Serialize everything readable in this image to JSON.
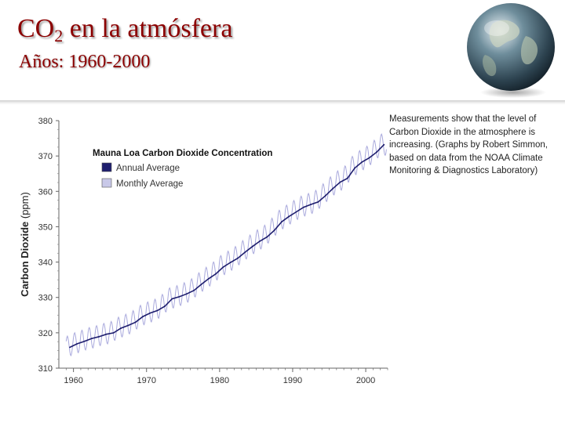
{
  "slide": {
    "title_main": "CO",
    "title_sub": "2",
    "title_rest": " en la atmósfera",
    "subtitle": "Años: 1960-2000",
    "caption": "Measurements show that the level of Carbon Dioxide in the atmosphere is increasing. (Graphs by Robert Simmon, based on data from the NOAA Climate Monitoring & Diagnostics Laboratory)"
  },
  "colors": {
    "title": "#8b0000",
    "annual_line": "#1e1e6e",
    "monthly_line": "#a8a8dc"
  },
  "chart_data": {
    "type": "line",
    "title": "Mauna Loa Carbon Dioxide Concentration",
    "ylabel_main": "Carbon Dioxide",
    "ylabel_unit": " (ppm)",
    "xlim": [
      1958,
      2003
    ],
    "ylim": [
      310,
      380
    ],
    "x_ticks": [
      1960,
      1970,
      1980,
      1990,
      2000
    ],
    "y_ticks": [
      310,
      320,
      330,
      340,
      350,
      360,
      370,
      380
    ],
    "legend": {
      "position": "top-left",
      "entries": [
        "Annual Average",
        "Monthly Average"
      ]
    },
    "grid": false,
    "seasonal_amplitude_ppm": 3,
    "series": [
      {
        "name": "Annual Average",
        "x": [
          1959,
          1960,
          1961,
          1962,
          1963,
          1964,
          1965,
          1966,
          1967,
          1968,
          1969,
          1970,
          1971,
          1972,
          1973,
          1974,
          1975,
          1976,
          1977,
          1978,
          1979,
          1980,
          1981,
          1982,
          1983,
          1984,
          1985,
          1986,
          1987,
          1988,
          1989,
          1990,
          1991,
          1992,
          1993,
          1994,
          1995,
          1996,
          1997,
          1998,
          1999,
          2000,
          2001,
          2002
        ],
        "y": [
          315.9,
          316.9,
          317.6,
          318.4,
          318.9,
          319.6,
          320.0,
          321.3,
          322.1,
          323.0,
          324.6,
          325.6,
          326.3,
          327.5,
          329.6,
          330.2,
          331.0,
          332.0,
          333.7,
          335.3,
          336.7,
          338.6,
          339.9,
          341.1,
          342.8,
          344.4,
          345.9,
          347.1,
          349.0,
          351.4,
          352.9,
          354.2,
          355.5,
          356.3,
          357.0,
          358.8,
          360.8,
          362.6,
          363.7,
          366.6,
          368.3,
          369.5,
          371.1,
          373.2
        ]
      }
    ]
  }
}
